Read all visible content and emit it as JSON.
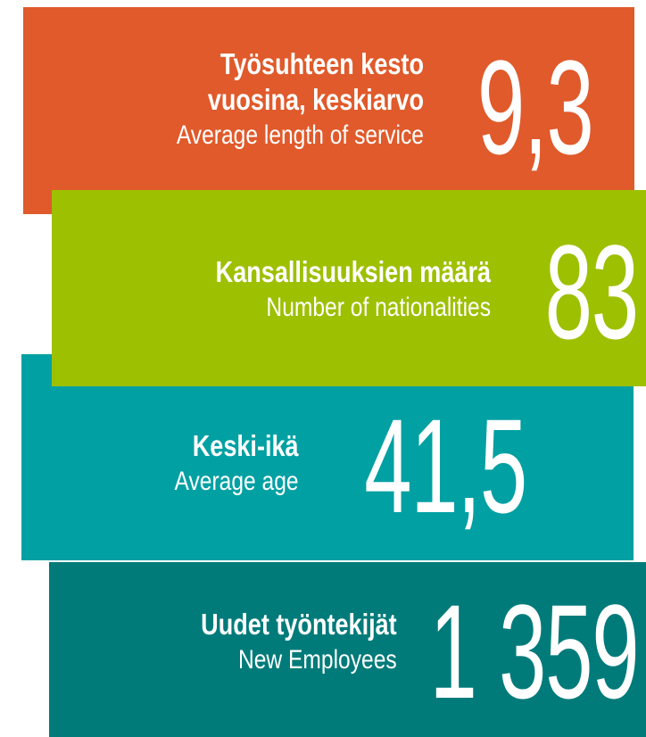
{
  "blocks": [
    {
      "title_fi": [
        "Työsuhteen kesto",
        "vuosina, keskiarvo"
      ],
      "title_en": "Average length of service",
      "value": "9,3"
    },
    {
      "title_fi": [
        "Kansallisuuksien määrä"
      ],
      "title_en": "Number of nationalities",
      "value": "83"
    },
    {
      "title_fi": [
        "Keski-ikä"
      ],
      "title_en": "Average age",
      "value": "41,5"
    },
    {
      "title_fi": [
        "Uudet työntekijät"
      ],
      "title_en": "New Employees",
      "value": "1 359"
    }
  ]
}
